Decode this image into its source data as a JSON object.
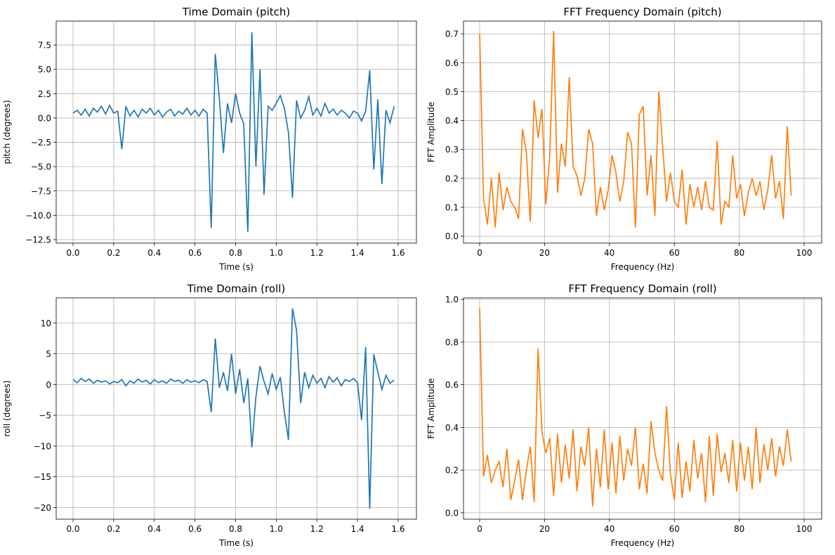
{
  "chart_data": [
    {
      "type": "line",
      "title": "Time Domain (pitch)",
      "x_label": "Time (s)",
      "y_label": "pitch (degrees)",
      "color": "#1f77b4",
      "grid": true,
      "x": [
        0.0,
        0.02,
        0.04,
        0.06,
        0.08,
        0.1,
        0.12,
        0.14,
        0.16,
        0.18,
        0.2,
        0.22,
        0.24,
        0.26,
        0.28,
        0.3,
        0.32,
        0.34,
        0.36,
        0.38,
        0.4,
        0.42,
        0.44,
        0.46,
        0.48,
        0.5,
        0.52,
        0.54,
        0.56,
        0.58,
        0.6,
        0.62,
        0.64,
        0.66,
        0.68,
        0.7,
        0.72,
        0.74,
        0.76,
        0.78,
        0.8,
        0.82,
        0.84,
        0.86,
        0.88,
        0.9,
        0.92,
        0.94,
        0.96,
        0.98,
        1.0,
        1.02,
        1.04,
        1.06,
        1.08,
        1.1,
        1.12,
        1.14,
        1.16,
        1.18,
        1.2,
        1.22,
        1.24,
        1.26,
        1.28,
        1.3,
        1.32,
        1.34,
        1.36,
        1.38,
        1.4,
        1.42,
        1.44,
        1.46,
        1.48,
        1.5,
        1.52,
        1.54,
        1.56,
        1.58
      ],
      "values": [
        0.5,
        0.8,
        0.3,
        0.9,
        0.2,
        1.0,
        0.6,
        1.2,
        0.4,
        1.3,
        0.5,
        0.7,
        -3.2,
        1.2,
        0.2,
        0.8,
        0.1,
        0.9,
        0.5,
        1.0,
        0.3,
        0.8,
        0.1,
        0.6,
        0.9,
        0.2,
        0.7,
        0.4,
        1.0,
        0.3,
        0.8,
        0.2,
        0.9,
        0.5,
        -11.3,
        6.6,
        2.0,
        -3.6,
        1.5,
        -0.5,
        2.5,
        0.5,
        -0.6,
        -11.7,
        8.8,
        -5.0,
        5.0,
        -7.9,
        1.2,
        0.8,
        1.5,
        2.3,
        1.0,
        -1.5,
        -8.2,
        1.8,
        0.0,
        0.8,
        2.2,
        0.3,
        1.0,
        0.2,
        1.5,
        0.5,
        0.9,
        0.3,
        0.8,
        0.5,
        0.0,
        0.7,
        0.5,
        -0.3,
        0.7,
        4.9,
        -5.3,
        1.9,
        -6.8,
        0.8,
        -0.5,
        1.2
      ],
      "xlim": [
        -0.083,
        1.69
      ],
      "ylim": [
        -12.86,
        9.96
      ],
      "xticks": [
        {
          "value": 0,
          "label": "0.0"
        },
        0.2,
        0.4,
        0.6,
        0.8,
        {
          "value": 1,
          "label": "1.0"
        },
        1.2,
        1.4,
        1.6
      ],
      "yticks": [
        {
          "value": -12.5,
          "label": "−12.5"
        },
        {
          "value": -10,
          "label": "−10.0"
        },
        {
          "value": -7.5,
          "label": "−7.5"
        },
        {
          "value": -5,
          "label": "−5.0"
        },
        {
          "value": -2.5,
          "label": "−2.5"
        },
        {
          "value": 0,
          "label": "0.0"
        },
        2.5,
        {
          "value": 5,
          "label": "5.0"
        },
        7.5
      ]
    },
    {
      "type": "line",
      "title": "FFT Frequency Domain (pitch)",
      "x_label": "Frequency (Hz)",
      "y_label": "FFT Amplitude",
      "color": "#ff7f0e",
      "grid": true,
      "x": [
        0,
        1.2,
        2.4,
        3.6,
        4.8,
        6,
        7.2,
        8.4,
        9.6,
        10.8,
        12,
        13.2,
        14.4,
        15.6,
        16.8,
        18,
        19.2,
        20.4,
        21.6,
        22.8,
        24,
        25.2,
        26.4,
        27.6,
        28.8,
        30,
        31.2,
        32.4,
        33.6,
        34.8,
        36,
        37.2,
        38.4,
        39.6,
        40.8,
        42,
        43.2,
        44.4,
        45.6,
        46.8,
        48,
        49.2,
        50.4,
        51.6,
        52.8,
        54,
        55.2,
        56.4,
        57.6,
        58.8,
        60,
        61.2,
        62.4,
        63.6,
        64.8,
        66,
        67.2,
        68.4,
        69.6,
        70.8,
        72,
        73.2,
        74.4,
        75.6,
        76.8,
        78,
        79.2,
        80.4,
        81.6,
        82.8,
        84,
        85.2,
        86.4,
        87.6,
        88.8,
        90,
        91.2,
        92.4,
        93.6,
        94.8,
        96
      ],
      "values": [
        0.7,
        0.13,
        0.04,
        0.2,
        0.03,
        0.22,
        0.09,
        0.17,
        0.12,
        0.1,
        0.06,
        0.37,
        0.29,
        0.05,
        0.47,
        0.34,
        0.44,
        0.11,
        0.28,
        0.71,
        0.15,
        0.32,
        0.24,
        0.55,
        0.24,
        0.21,
        0.14,
        0.2,
        0.37,
        0.32,
        0.07,
        0.17,
        0.09,
        0.16,
        0.28,
        0.22,
        0.12,
        0.19,
        0.36,
        0.32,
        0.03,
        0.42,
        0.45,
        0.14,
        0.28,
        0.07,
        0.5,
        0.31,
        0.12,
        0.22,
        0.12,
        0.1,
        0.23,
        0.04,
        0.18,
        0.1,
        0.17,
        0.09,
        0.19,
        0.1,
        0.09,
        0.33,
        0.04,
        0.12,
        0.1,
        0.28,
        0.13,
        0.18,
        0.07,
        0.15,
        0.2,
        0.14,
        0.19,
        0.09,
        0.16,
        0.28,
        0.13,
        0.19,
        0.06,
        0.38,
        0.14
      ],
      "xlim": [
        -4.98,
        105.4
      ],
      "ylim": [
        -0.024,
        0.744
      ],
      "xticks": [
        0,
        20,
        40,
        60,
        80,
        100
      ],
      "yticks": [
        {
          "value": 0,
          "label": "0.0"
        },
        0.1,
        0.2,
        0.3,
        0.4,
        0.5,
        0.6,
        0.7
      ]
    },
    {
      "type": "line",
      "title": "Time Domain (roll)",
      "x_label": "Time (s)",
      "y_label": "roll (degrees)",
      "color": "#1f77b4",
      "grid": true,
      "x": [
        0.0,
        0.02,
        0.04,
        0.06,
        0.08,
        0.1,
        0.12,
        0.14,
        0.16,
        0.18,
        0.2,
        0.22,
        0.24,
        0.26,
        0.28,
        0.3,
        0.32,
        0.34,
        0.36,
        0.38,
        0.4,
        0.42,
        0.44,
        0.46,
        0.48,
        0.5,
        0.52,
        0.54,
        0.56,
        0.58,
        0.6,
        0.62,
        0.64,
        0.66,
        0.68,
        0.7,
        0.72,
        0.74,
        0.76,
        0.78,
        0.8,
        0.82,
        0.84,
        0.86,
        0.88,
        0.9,
        0.92,
        0.94,
        0.96,
        0.98,
        1.0,
        1.02,
        1.04,
        1.06,
        1.08,
        1.1,
        1.12,
        1.14,
        1.16,
        1.18,
        1.2,
        1.22,
        1.24,
        1.26,
        1.28,
        1.3,
        1.32,
        1.34,
        1.36,
        1.38,
        1.4,
        1.42,
        1.44,
        1.46,
        1.48,
        1.5,
        1.52,
        1.54,
        1.56,
        1.58
      ],
      "values": [
        0.8,
        0.3,
        1.0,
        0.5,
        0.9,
        0.2,
        0.7,
        0.4,
        0.6,
        0.1,
        0.5,
        0.3,
        0.8,
        -0.2,
        0.6,
        0.2,
        0.9,
        0.4,
        0.7,
        0.1,
        0.8,
        0.3,
        0.6,
        0.2,
        0.9,
        0.5,
        0.7,
        0.2,
        0.8,
        0.4,
        0.6,
        0.3,
        0.8,
        0.5,
        -4.5,
        7.5,
        -0.5,
        2.0,
        -1.0,
        5.0,
        -1.5,
        2.5,
        -3.0,
        1.0,
        -10.2,
        -2.0,
        3.0,
        0.5,
        -1.5,
        1.8,
        -0.8,
        1.2,
        -4.5,
        -9.0,
        12.4,
        8.8,
        -3.0,
        2.0,
        -0.5,
        1.5,
        0.2,
        1.0,
        -0.5,
        1.3,
        0.4,
        1.1,
        -0.2,
        0.8,
        0.5,
        1.0,
        0.3,
        -5.8,
        6.1,
        -20.2,
        4.9,
        2.0,
        -0.8,
        1.5,
        0.2,
        0.7
      ],
      "xlim": [
        -0.083,
        1.69
      ],
      "ylim": [
        -21.9,
        14.1
      ],
      "xticks": [
        {
          "value": 0,
          "label": "0.0"
        },
        0.2,
        0.4,
        0.6,
        0.8,
        {
          "value": 1,
          "label": "1.0"
        },
        1.2,
        1.4,
        1.6
      ],
      "yticks": [
        {
          "value": -20,
          "label": "−20"
        },
        {
          "value": -15,
          "label": "−15"
        },
        {
          "value": -10,
          "label": "−10"
        },
        {
          "value": -5,
          "label": "−5"
        },
        0,
        5,
        10
      ]
    },
    {
      "type": "line",
      "title": "FFT Frequency Domain (roll)",
      "x_label": "Frequency (Hz)",
      "y_label": "FFT Amplitude",
      "color": "#ff7f0e",
      "grid": true,
      "x": [
        0,
        1.2,
        2.4,
        3.6,
        4.8,
        6,
        7.2,
        8.4,
        9.6,
        10.8,
        12,
        13.2,
        14.4,
        15.6,
        16.8,
        18,
        19.2,
        20.4,
        21.6,
        22.8,
        24,
        25.2,
        26.4,
        27.6,
        28.8,
        30,
        31.2,
        32.4,
        33.6,
        34.8,
        36,
        37.2,
        38.4,
        39.6,
        40.8,
        42,
        43.2,
        44.4,
        45.6,
        46.8,
        48,
        49.2,
        50.4,
        51.6,
        52.8,
        54,
        55.2,
        56.4,
        57.6,
        58.8,
        60,
        61.2,
        62.4,
        63.6,
        64.8,
        66,
        67.2,
        68.4,
        69.6,
        70.8,
        72,
        73.2,
        74.4,
        75.6,
        76.8,
        78,
        79.2,
        80.4,
        81.6,
        82.8,
        84,
        85.2,
        86.4,
        87.6,
        88.8,
        90,
        91.2,
        92.4,
        93.6,
        94.8,
        96
      ],
      "values": [
        0.96,
        0.17,
        0.27,
        0.14,
        0.2,
        0.24,
        0.12,
        0.3,
        0.06,
        0.15,
        0.25,
        0.06,
        0.2,
        0.31,
        0.05,
        0.77,
        0.38,
        0.28,
        0.35,
        0.08,
        0.37,
        0.14,
        0.32,
        0.16,
        0.39,
        0.1,
        0.31,
        0.22,
        0.4,
        0.03,
        0.3,
        0.12,
        0.39,
        0.11,
        0.33,
        0.09,
        0.36,
        0.15,
        0.3,
        0.22,
        0.4,
        0.11,
        0.23,
        0.09,
        0.43,
        0.28,
        0.2,
        0.15,
        0.5,
        0.18,
        0.06,
        0.33,
        0.07,
        0.24,
        0.1,
        0.34,
        0.16,
        0.28,
        0.05,
        0.36,
        0.08,
        0.37,
        0.19,
        0.28,
        0.14,
        0.34,
        0.1,
        0.33,
        0.15,
        0.31,
        0.11,
        0.4,
        0.14,
        0.32,
        0.2,
        0.35,
        0.17,
        0.31,
        0.22,
        0.39,
        0.24
      ],
      "xlim": [
        -4.98,
        105.4
      ],
      "ylim": [
        -0.03,
        1.007
      ],
      "xticks": [
        0,
        20,
        40,
        60,
        80,
        100
      ],
      "yticks": [
        {
          "value": 0,
          "label": "0.0"
        },
        0.2,
        0.4,
        0.6,
        0.8,
        {
          "value": 1,
          "label": "1.0"
        }
      ]
    }
  ]
}
